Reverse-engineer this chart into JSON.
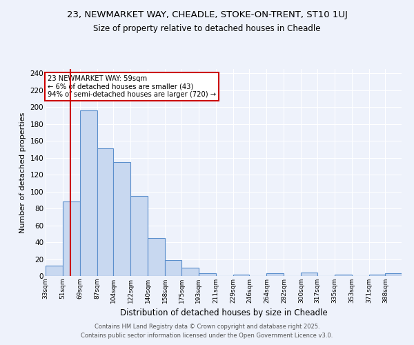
{
  "title1": "23, NEWMARKET WAY, CHEADLE, STOKE-ON-TRENT, ST10 1UJ",
  "title2": "Size of property relative to detached houses in Cheadle",
  "xlabel": "Distribution of detached houses by size in Cheadle",
  "ylabel": "Number of detached properties",
  "bins": [
    33,
    51,
    69,
    87,
    104,
    122,
    140,
    158,
    175,
    193,
    211,
    229,
    246,
    264,
    282,
    300,
    317,
    335,
    353,
    371,
    388
  ],
  "counts": [
    12,
    88,
    196,
    151,
    135,
    95,
    45,
    19,
    10,
    3,
    0,
    2,
    0,
    3,
    0,
    4,
    0,
    2,
    0,
    2,
    3
  ],
  "bar_color": "#c8d8f0",
  "bar_edge_color": "#5b8fcc",
  "vline_x": 59,
  "vline_color": "#cc0000",
  "annotation_text": "23 NEWMARKET WAY: 59sqm\n← 6% of detached houses are smaller (43)\n94% of semi-detached houses are larger (720) →",
  "annotation_box_color": "#ffffff",
  "annotation_box_edge": "#cc0000",
  "ylim": [
    0,
    245
  ],
  "yticks": [
    0,
    20,
    40,
    60,
    80,
    100,
    120,
    140,
    160,
    180,
    200,
    220,
    240
  ],
  "background_color": "#eef2fb",
  "grid_color": "#ffffff",
  "footer1": "Contains HM Land Registry data © Crown copyright and database right 2025.",
  "footer2": "Contains public sector information licensed under the Open Government Licence v3.0."
}
